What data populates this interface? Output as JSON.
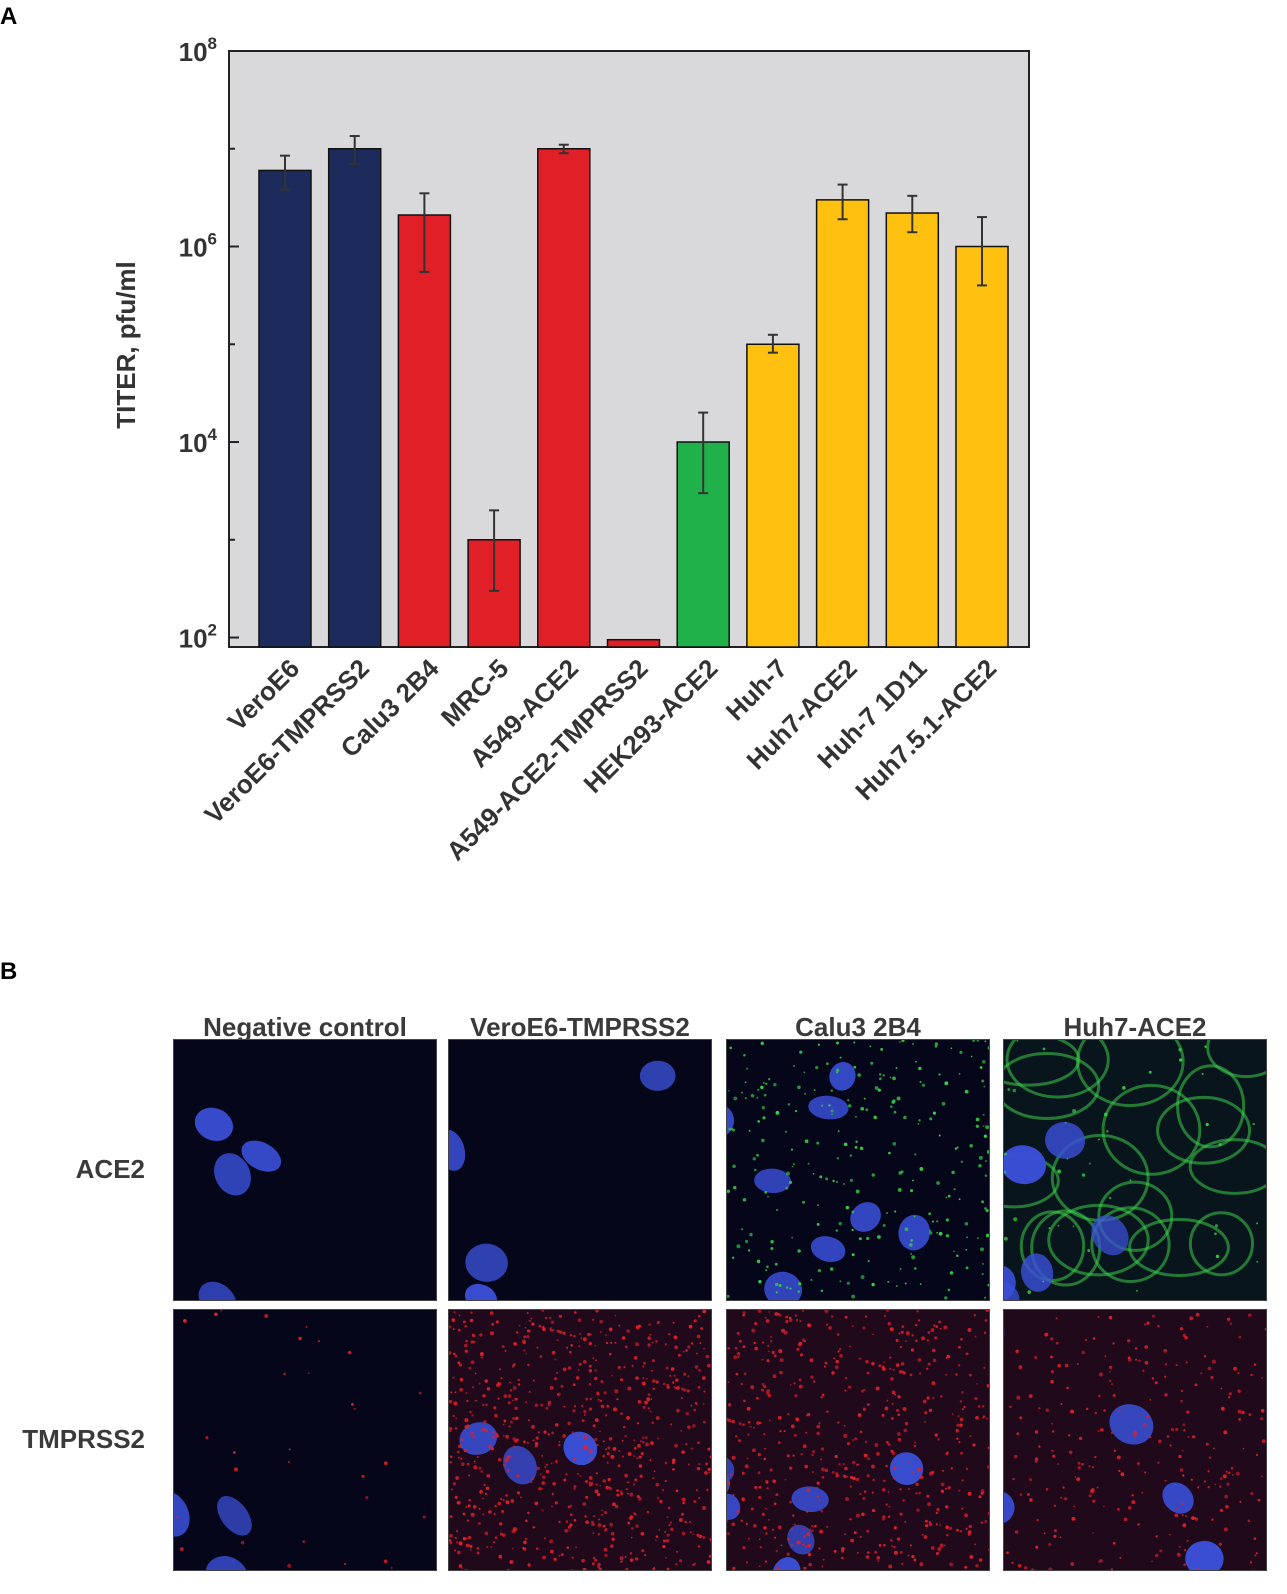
{
  "panel_a_label": "A",
  "panel_b_label": "B",
  "chart_data": {
    "type": "bar",
    "title": "",
    "xlabel": "",
    "ylabel": "TITER, pfu/ml",
    "yscale": "log",
    "ylim": [
      80,
      100000000
    ],
    "yticks": [
      {
        "value": 100,
        "base": "10",
        "exp": "2"
      },
      {
        "value": 10000,
        "base": "10",
        "exp": "4"
      },
      {
        "value": 1000000,
        "base": "10",
        "exp": "6"
      },
      {
        "value": 100000000,
        "base": "10",
        "exp": "8"
      }
    ],
    "grid": false,
    "plot_background": "#d9d9db",
    "categories": [
      "VeroE6",
      "VeroE6-TMPRSS2",
      "Calu3 2B4",
      "MRC-5",
      "A549-ACE2",
      "A549-ACE2-TMPRSS2",
      "HEK293-ACE2",
      "Huh-7",
      "Huh7-ACE2",
      "Huh-7 1D11",
      "Huh7.5.1-ACE2"
    ],
    "values": [
      6000000,
      10000000,
      2100000,
      1000,
      10000000,
      95,
      10000,
      100000,
      3000000,
      2200000,
      1000000
    ],
    "error_low": [
      3800000,
      7000000,
      550000,
      300,
      9000000,
      null,
      3000,
      82000,
      1900000,
      1400000,
      400000
    ],
    "error_high": [
      8500000,
      13500000,
      3500000,
      2000,
      11000000,
      null,
      20000,
      125000,
      4300000,
      3300000,
      2000000
    ],
    "colors": [
      "#1d2a5c",
      "#1d2a5c",
      "#e11f26",
      "#e11f26",
      "#e11f26",
      "#e11f26",
      "#20b14b",
      "#ffc00f",
      "#ffc00f",
      "#ffc00f",
      "#ffc00f"
    ]
  },
  "panel_b": {
    "columns": [
      "Negative control",
      "VeroE6-TMPRSS2",
      "Calu3 2B4",
      "Huh7-ACE2"
    ],
    "rows": [
      "ACE2",
      "TMPRSS2"
    ],
    "colors": {
      "nucleus": "#3a4fd6",
      "ace2_stain": "#3ad04a",
      "tmprss2_stain": "#e0202a",
      "background": "#05061a"
    }
  }
}
